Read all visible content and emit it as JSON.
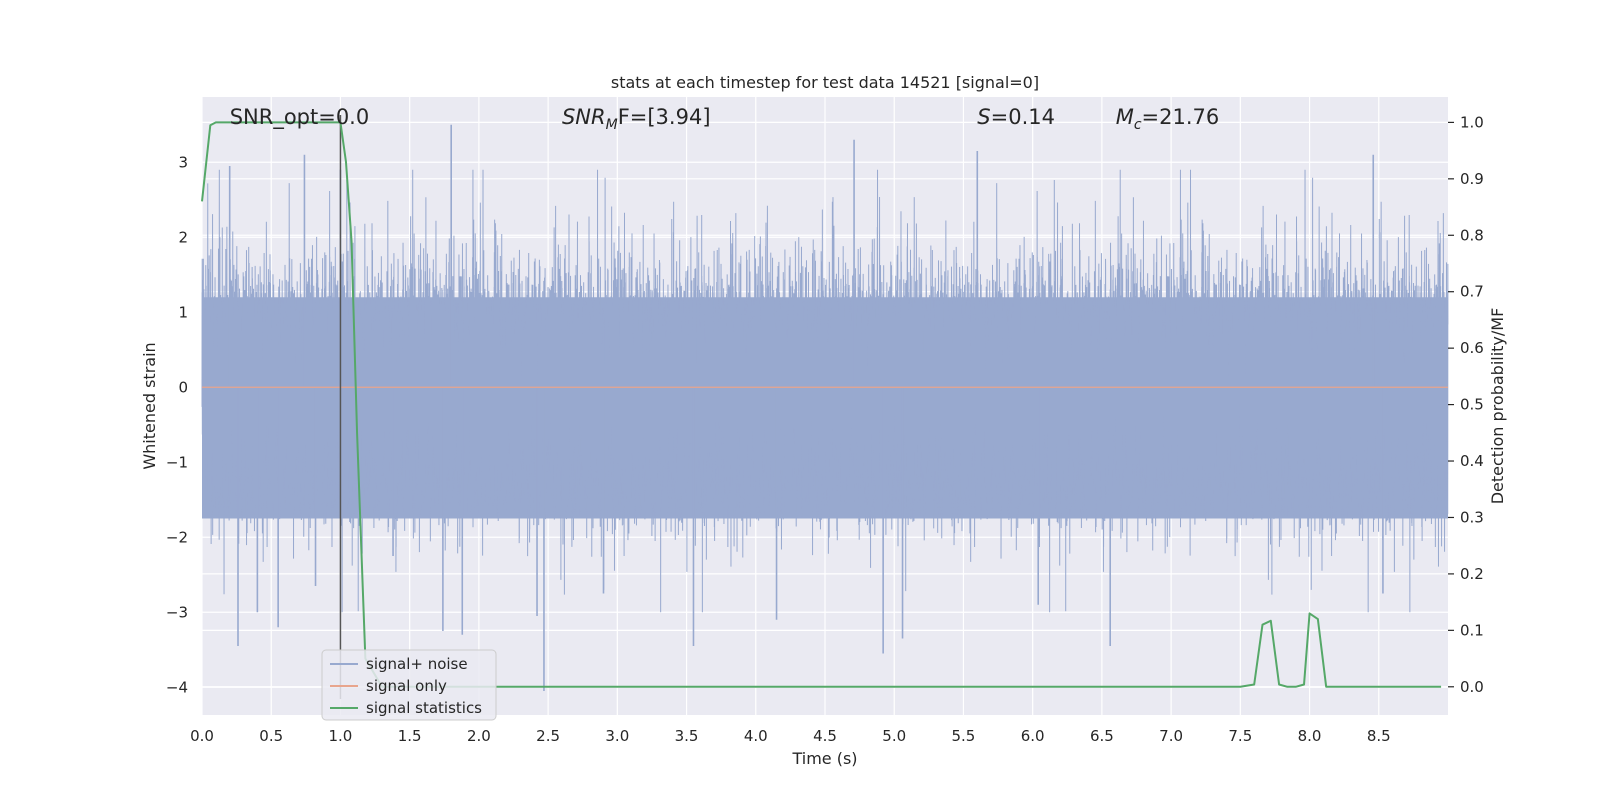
{
  "chart_data": {
    "type": "line",
    "title": "stats at each timestep for test data 14521 [signal=0]",
    "xlabel": "Time (s)",
    "ylabel_left": "Whitened strain",
    "ylabel_right": "Detection probability/MF",
    "xlim": [
      0,
      9.0
    ],
    "ylim_left": [
      -4.37,
      3.87
    ],
    "ylim_right": [
      -0.05,
      1.045
    ],
    "grid": true,
    "legend_position": "lower-left",
    "x_ticks": [
      "0.0",
      "0.5",
      "1.0",
      "1.5",
      "2.0",
      "2.5",
      "3.0",
      "3.5",
      "4.0",
      "4.5",
      "5.0",
      "5.5",
      "6.0",
      "6.5",
      "7.0",
      "7.5",
      "8.0",
      "8.5"
    ],
    "x_tick_values": [
      0,
      0.5,
      1.0,
      1.5,
      2.0,
      2.5,
      3.0,
      3.5,
      4.0,
      4.5,
      5.0,
      5.5,
      6.0,
      6.5,
      7.0,
      7.5,
      8.0,
      8.5
    ],
    "y_ticks_left": [
      "3",
      "2",
      "1",
      "0",
      "−1",
      "−2",
      "−3",
      "−4"
    ],
    "y_tick_values_left": [
      3,
      2,
      1,
      0,
      -1,
      -2,
      -3,
      -4
    ],
    "y_ticks_right": [
      "1.0",
      "0.9",
      "0.8",
      "0.7",
      "0.6",
      "0.5",
      "0.4",
      "0.3",
      "0.2",
      "0.1",
      "0.0"
    ],
    "y_tick_values_right": [
      1.0,
      0.9,
      0.8,
      0.7,
      0.6,
      0.5,
      0.4,
      0.3,
      0.2,
      0.1,
      0.0
    ],
    "annotations": [
      {
        "text": "SNR_opt=0.0",
        "x": 0.2
      },
      {
        "text": "SNR_MF=[3.94]",
        "x": 2.6,
        "math_base": "SNR",
        "math_sub": "M",
        "math_rest": "F=[3.94]"
      },
      {
        "text": "S=0.14",
        "x": 5.6,
        "math_base": "S",
        "math_sub": "",
        "math_rest": "=0.14"
      },
      {
        "text": "M_c=21.76",
        "x": 6.6,
        "math_base": "M",
        "math_sub": "c",
        "math_rest": "=21.76"
      }
    ],
    "series": [
      {
        "name": "signal+ noise",
        "axis": "left",
        "color": "#98a9cf",
        "kind": "noise",
        "sample_rate_hz": 2048,
        "band_upper": 1.2,
        "band_lower": -1.75,
        "spikes": [
          {
            "x": 0.26,
            "y": -3.45
          },
          {
            "x": 0.4,
            "y": -3.0
          },
          {
            "x": 0.55,
            "y": -3.2
          },
          {
            "x": 0.82,
            "y": -2.65
          },
          {
            "x": 1.38,
            "y": -2.25
          },
          {
            "x": 1.74,
            "y": -3.25
          },
          {
            "x": 1.8,
            "y": 3.5
          },
          {
            "x": 1.88,
            "y": -3.3
          },
          {
            "x": 2.47,
            "y": -4.05
          },
          {
            "x": 2.42,
            "y": -3.05
          },
          {
            "x": 2.9,
            "y": -2.75
          },
          {
            "x": 3.55,
            "y": -3.45
          },
          {
            "x": 4.15,
            "y": -3.1
          },
          {
            "x": 4.71,
            "y": 3.3
          },
          {
            "x": 4.92,
            "y": -3.55
          },
          {
            "x": 5.06,
            "y": -3.35
          },
          {
            "x": 6.04,
            "y": -2.9
          },
          {
            "x": 6.56,
            "y": -3.45
          },
          {
            "x": 5.6,
            "y": 3.15
          },
          {
            "x": 8.46,
            "y": 3.1
          },
          {
            "x": 8.53,
            "y": -2.75
          },
          {
            "x": 1.0,
            "y": 2.9
          },
          {
            "x": 0.74,
            "y": 3.1
          },
          {
            "x": 0.2,
            "y": 2.95
          }
        ]
      },
      {
        "name": "signal only",
        "axis": "left",
        "color": "#e8a58d",
        "kind": "constant",
        "value": 0
      },
      {
        "name": "signal statistics",
        "axis": "right",
        "color": "#55a868",
        "kind": "line",
        "x": [
          0.0,
          0.06,
          0.1,
          0.2,
          0.3,
          0.5,
          0.7,
          0.9,
          1.0,
          1.04,
          1.08,
          1.12,
          1.18,
          1.3,
          2.0,
          3.0,
          4.0,
          5.0,
          6.0,
          7.0,
          7.5,
          7.6,
          7.66,
          7.72,
          7.78,
          7.84,
          7.9,
          7.96,
          8.0,
          8.06,
          8.12,
          8.18,
          8.3,
          8.5,
          8.95
        ],
        "y": [
          0.86,
          0.995,
          1.0,
          1.0,
          1.0,
          1.0,
          1.0,
          1.0,
          1.0,
          0.93,
          0.79,
          0.45,
          0.05,
          0.0,
          0.0,
          0.0,
          0.0,
          0.0,
          0.0,
          0.0,
          0.0,
          0.004,
          0.11,
          0.117,
          0.004,
          0.0,
          0.0,
          0.004,
          0.13,
          0.12,
          0.0,
          0.0,
          0.0,
          0.0,
          0.0
        ]
      }
    ],
    "vertical_marker": {
      "x": 1.0,
      "color": "#555555"
    }
  }
}
